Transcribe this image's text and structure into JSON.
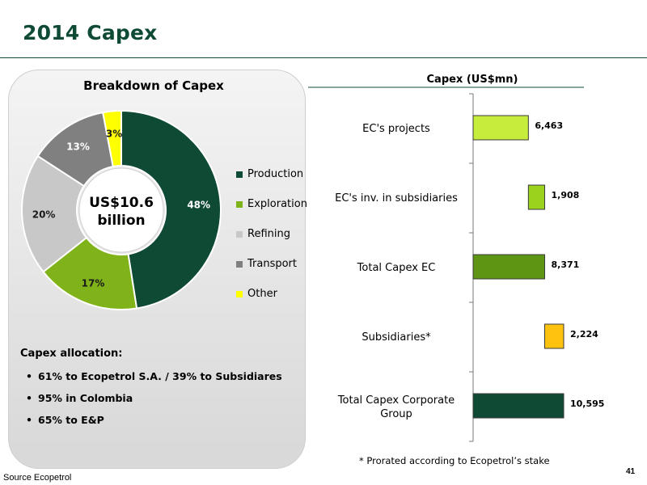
{
  "slide": {
    "title": "2014 Capex",
    "footnote": "* Prorated according to Ecopetrol’s stake",
    "source": "Source Ecopetrol",
    "page_number": "41"
  },
  "donut": {
    "center_text": [
      "US$10.6",
      "billion"
    ]
  },
  "allocation": {
    "title": "Capex allocation:",
    "items": [
      "61% to Ecopetrol S.A. / 39% to Subsidiares",
      "95% in Colombia",
      "65% to E&P"
    ]
  },
  "colors": {
    "production": "#0f4a35",
    "exploration": "#80b31a",
    "refining": "#c8c8c8",
    "transport": "#808080",
    "other": "#ffff00",
    "ec_projects_bar": "#c6ec3c",
    "ec_inv_bar": "#9bd21e",
    "total_ec_bar": "#5e9613",
    "subsidiaries_bar": "#ffc20e",
    "total_group_bar": "#0f4a35"
  },
  "chart_data": [
    {
      "type": "pie",
      "title": "Breakdown of Capex",
      "categories": [
        "Production",
        "Exploration",
        "Refining",
        "Transport",
        "Other"
      ],
      "values": [
        48,
        17,
        20,
        13,
        3
      ],
      "labels": [
        "48%",
        "17%",
        "20%",
        "13%",
        "3%"
      ],
      "legend_position": "right"
    },
    {
      "type": "bar",
      "orientation": "horizontal",
      "title": "Capex (US$mn)",
      "bars": [
        {
          "label": "EC's projects",
          "start": 0,
          "end": 6463,
          "value_label": "6,463"
        },
        {
          "label": "EC's inv. in subsidiaries",
          "start": 6463,
          "end": 8371,
          "value_label": "1,908"
        },
        {
          "label": "Total Capex EC",
          "start": 0,
          "end": 8371,
          "value_label": "8,371"
        },
        {
          "label": "Subsidiaries*",
          "start": 8371,
          "end": 10595,
          "value_label": "2,224"
        },
        {
          "label": "Total Capex Corporate Group",
          "start": 0,
          "end": 10595,
          "value_label": "10,595"
        }
      ]
    }
  ]
}
